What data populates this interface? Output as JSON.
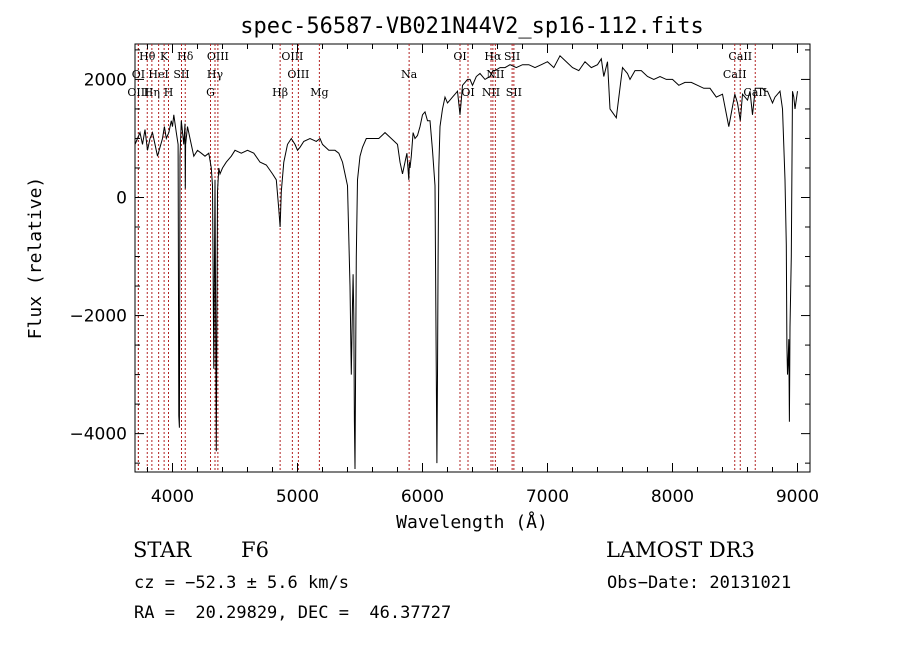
{
  "chart_data": {
    "type": "line",
    "title": "spec-56587-VB021N44V2_sp16-112.fits",
    "xlabel": "Wavelength (Å)",
    "ylabel": "Flux (relative)",
    "xlim": [
      3700,
      9100
    ],
    "ylim": [
      -4650,
      2600
    ],
    "x_ticks": [
      4000,
      5000,
      6000,
      7000,
      8000,
      9000
    ],
    "x_tick_labels": [
      "4000",
      "5000",
      "6000",
      "7000",
      "8000",
      "9000"
    ],
    "y_ticks": [
      -4000,
      -2000,
      0,
      2000
    ],
    "y_tick_labels": [
      "−4000",
      "−2000",
      "0",
      "2000"
    ],
    "grid": false,
    "line_color": "#000000",
    "marker_color": "#b22222",
    "series": [
      {
        "x": [
          3700,
          3720,
          3740,
          3760,
          3780,
          3800,
          3820,
          3840,
          3860,
          3880,
          3900,
          3920,
          3935,
          3950,
          3970,
          3990,
          4000,
          4010,
          4030,
          4045,
          4050,
          4055,
          4060,
          4070,
          4090,
          4100,
          4102,
          4105,
          4120,
          4140,
          4170,
          4200,
          4230,
          4260,
          4290,
          4310,
          4320,
          4330,
          4340,
          4350,
          4360,
          4370,
          4380,
          4400,
          4430,
          4470,
          4500,
          4550,
          4600,
          4650,
          4700,
          4750,
          4800,
          4830,
          4850,
          4861,
          4870,
          4890,
          4920,
          4950,
          4980,
          5000,
          5020,
          5050,
          5100,
          5150,
          5180,
          5200,
          5250,
          5300,
          5330,
          5360,
          5380,
          5400,
          5420,
          5430,
          5440,
          5445,
          5450,
          5455,
          5460,
          5470,
          5480,
          5500,
          5520,
          5550,
          5600,
          5650,
          5700,
          5750,
          5800,
          5820,
          5840,
          5860,
          5875,
          5890,
          5895,
          5900,
          5910,
          5925,
          5940,
          5960,
          5980,
          6000,
          6020,
          6040,
          6060,
          6080,
          6100,
          6110,
          6115,
          6120,
          6125,
          6130,
          6140,
          6160,
          6180,
          6200,
          6220,
          6240,
          6260,
          6280,
          6300,
          6310,
          6320,
          6340,
          6360,
          6380,
          6400,
          6430,
          6460,
          6500,
          6540,
          6563,
          6580,
          6620,
          6660,
          6700,
          6750,
          6800,
          6850,
          6900,
          6950,
          7000,
          7050,
          7100,
          7150,
          7200,
          7250,
          7300,
          7350,
          7400,
          7430,
          7450,
          7480,
          7500,
          7550,
          7600,
          7640,
          7660,
          7700,
          7750,
          7800,
          7850,
          7900,
          7950,
          8000,
          8050,
          8100,
          8150,
          8200,
          8250,
          8300,
          8350,
          8400,
          8450,
          8498,
          8520,
          8542,
          8560,
          8580,
          8600,
          8620,
          8640,
          8662,
          8680,
          8700,
          8720,
          8740,
          8760,
          8780,
          8800,
          8820,
          8840,
          8860,
          8880,
          8900,
          8910,
          8915,
          8920,
          8925,
          8930,
          8935,
          8940,
          8950,
          8960,
          8970,
          8975,
          8980,
          9000
        ],
        "y": [
          900,
          1000,
          1100,
          900,
          1150,
          800,
          1000,
          1100,
          900,
          700,
          850,
          1000,
          1200,
          1000,
          1100,
          1300,
          1200,
          1400,
          1100,
          900,
          -3700,
          -3900,
          700,
          1300,
          900,
          1250,
          150,
          900,
          1200,
          1000,
          700,
          800,
          750,
          700,
          750,
          500,
          200,
          -2900,
          300,
          -4300,
          100,
          500,
          400,
          500,
          600,
          700,
          800,
          750,
          800,
          750,
          600,
          550,
          400,
          300,
          -200,
          -500,
          100,
          600,
          900,
          1000,
          900,
          800,
          850,
          950,
          1000,
          950,
          1000,
          900,
          800,
          800,
          750,
          600,
          400,
          200,
          -1500,
          -3000,
          -1800,
          -1300,
          -2000,
          -3800,
          -4600,
          -1000,
          300,
          700,
          850,
          1000,
          1000,
          1000,
          1100,
          1000,
          900,
          600,
          400,
          600,
          750,
          300,
          600,
          500,
          700,
          1100,
          1000,
          1050,
          1200,
          1400,
          1450,
          1300,
          1300,
          800,
          200,
          -3000,
          -4500,
          -3000,
          -1000,
          500,
          1200,
          1500,
          1700,
          1600,
          1650,
          1700,
          1750,
          1800,
          1400,
          1650,
          1900,
          1950,
          2000,
          2000,
          1900,
          2050,
          2100,
          2000,
          2050,
          2150,
          2150,
          2200,
          2200,
          2250,
          2200,
          2250,
          2250,
          2200,
          2250,
          2300,
          2200,
          2400,
          2300,
          2200,
          2150,
          2300,
          2200,
          2250,
          2350,
          2050,
          2300,
          1500,
          1350,
          2200,
          2100,
          2000,
          2150,
          2150,
          2050,
          2000,
          2050,
          2000,
          2000,
          1900,
          1950,
          1950,
          1900,
          1850,
          1850,
          1700,
          1750,
          1200,
          1750,
          1600,
          1300,
          1750,
          1700,
          1650,
          1800,
          1400,
          1850,
          1850,
          1850,
          1850,
          1800,
          1800,
          1700,
          1600,
          1700,
          1750,
          1800,
          1500,
          300,
          -800,
          -2500,
          -3000,
          -2800,
          -2400,
          -3800,
          -2200,
          -1000,
          1800,
          1700,
          1600,
          1500,
          1800
        ]
      }
    ],
    "lines": [
      {
        "label": "Hθ",
        "wl": 3798,
        "row": 0
      },
      {
        "label": "K",
        "wl": 3933,
        "row": 0
      },
      {
        "label": "Hδ",
        "wl": 4102,
        "row": 0
      },
      {
        "label": "OIII",
        "wl": 4363,
        "row": 0
      },
      {
        "label": "OIII",
        "wl": 4959,
        "row": 0
      },
      {
        "label": "OI",
        "wl": 6300,
        "row": 0
      },
      {
        "label": "Hα",
        "wl": 6563,
        "row": 0
      },
      {
        "label": "SII",
        "wl": 6717,
        "row": 0
      },
      {
        "label": "CaII",
        "wl": 8542,
        "row": 0
      },
      {
        "label": "OI",
        "wl": 3727,
        "row": 1
      },
      {
        "label": "HeI",
        "wl": 3889,
        "row": 1
      },
      {
        "label": "SII",
        "wl": 4072,
        "row": 1
      },
      {
        "label": "Hγ",
        "wl": 4340,
        "row": 1
      },
      {
        "label": "OIII",
        "wl": 5007,
        "row": 1
      },
      {
        "label": "Na",
        "wl": 5893,
        "row": 1
      },
      {
        "label": "NII",
        "wl": 6583,
        "row": 1
      },
      {
        "label": "CaII",
        "wl": 8498,
        "row": 1
      },
      {
        "label": "OIII",
        "wl": 3727,
        "row": 2
      },
      {
        "label": "Hη",
        "wl": 3835,
        "row": 2
      },
      {
        "label": "H",
        "wl": 3968,
        "row": 2
      },
      {
        "label": "G",
        "wl": 4304,
        "row": 2
      },
      {
        "label": "Hβ",
        "wl": 4861,
        "row": 2
      },
      {
        "label": "Mg",
        "wl": 5175,
        "row": 2
      },
      {
        "label": "OI",
        "wl": 6364,
        "row": 2
      },
      {
        "label": "NII",
        "wl": 6548,
        "row": 2
      },
      {
        "label": "SII",
        "wl": 6731,
        "row": 2
      },
      {
        "label": "CaII",
        "wl": 8662,
        "row": 2
      }
    ]
  },
  "info": {
    "object_class": "STAR",
    "subclass": "F6",
    "survey": "LAMOST DR3",
    "cz": "cz = −52.3 ± 5.6 km/s",
    "obs_date": "Obs−Date: 20131021",
    "radec": "RA =  20.29829, DEC =  46.37727"
  }
}
